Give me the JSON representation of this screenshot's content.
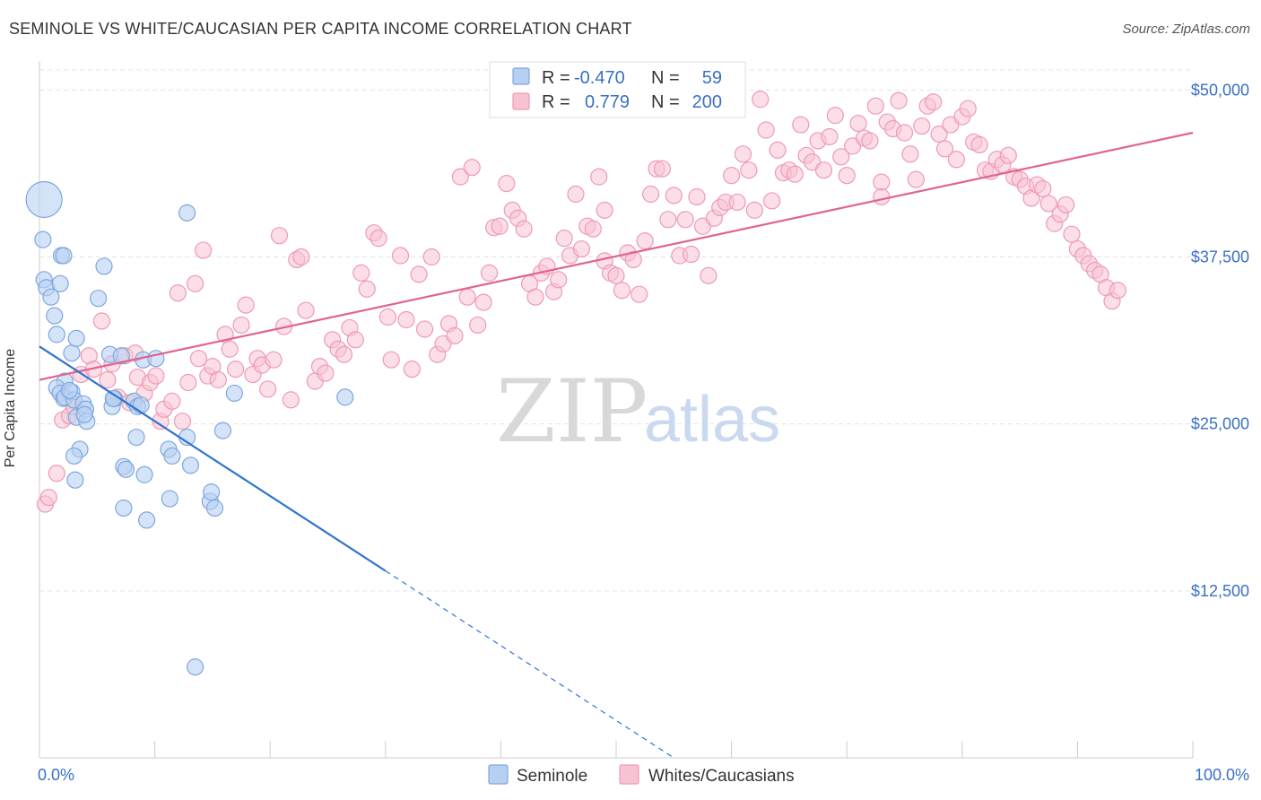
{
  "header": {
    "title": "SEMINOLE VS WHITE/CAUCASIAN PER CAPITA INCOME CORRELATION CHART",
    "source": "Source: ZipAtlas.com"
  },
  "watermark": {
    "zip": "ZIP",
    "atlas": "atlas"
  },
  "colors": {
    "seminole_fill": "#b7d0f2",
    "seminole_stroke": "#7ea7df",
    "seminole_line": "#2f74cf",
    "white_fill": "#f7c3d3",
    "white_stroke": "#ee9ab4",
    "white_line": "#e0648f",
    "tick_text": "#3a6fc4",
    "grid": "#e3e3e3"
  },
  "legend": {
    "rows": [
      {
        "r_label": "R =",
        "r_value": "-0.470",
        "n_label": "N =",
        "n_value": "59"
      },
      {
        "r_label": "R =",
        "r_value": "0.779",
        "n_label": "N =",
        "n_value": "200"
      }
    ]
  },
  "chart_data": {
    "type": "scatter",
    "title": "SEMINOLE VS WHITE/CAUCASIAN PER CAPITA INCOME CORRELATION CHART",
    "xlabel": "",
    "ylabel": "Per Capita Income",
    "x_tick_labels": [
      "0.0%",
      "100.0%"
    ],
    "y_tick_labels": [
      "$12,500",
      "$25,000",
      "$37,500",
      "$50,000"
    ],
    "y_ticks": [
      12500,
      25000,
      37500,
      50000
    ],
    "xlim": [
      0,
      100
    ],
    "ylim": [
      0,
      51500
    ],
    "grid": true,
    "legend_position": "top-center",
    "series": [
      {
        "name": "Seminole",
        "r": -0.47,
        "n": 59,
        "trend": {
          "x0": 0,
          "y0": 30800,
          "x1": 30,
          "y1": 14000,
          "dash_to_x": 55
        },
        "points": [
          [
            0.4,
            41800
          ],
          [
            0.3,
            38800
          ],
          [
            0.4,
            35800
          ],
          [
            0.6,
            35200
          ],
          [
            1.0,
            34500
          ],
          [
            1.3,
            33100
          ],
          [
            1.5,
            31700
          ],
          [
            1.9,
            37600
          ],
          [
            1.8,
            35500
          ],
          [
            2.1,
            37600
          ],
          [
            2.8,
            30300
          ],
          [
            2.2,
            28200
          ],
          [
            1.5,
            27700
          ],
          [
            1.8,
            27300
          ],
          [
            2.1,
            26900
          ],
          [
            2.2,
            27000
          ],
          [
            2.8,
            27400
          ],
          [
            3.0,
            26800
          ],
          [
            3.2,
            25500
          ],
          [
            3.8,
            26500
          ],
          [
            4.0,
            26100
          ],
          [
            4.1,
            25200
          ],
          [
            3.9,
            25700
          ],
          [
            3.2,
            31400
          ],
          [
            3.5,
            23100
          ],
          [
            3.0,
            22600
          ],
          [
            3.1,
            20800
          ],
          [
            5.1,
            34400
          ],
          [
            5.6,
            36800
          ],
          [
            6.1,
            30200
          ],
          [
            6.3,
            26300
          ],
          [
            6.5,
            26900
          ],
          [
            7.1,
            30100
          ],
          [
            7.3,
            21800
          ],
          [
            7.5,
            21600
          ],
          [
            7.3,
            18700
          ],
          [
            8.2,
            26700
          ],
          [
            8.5,
            26300
          ],
          [
            8.4,
            24000
          ],
          [
            9.0,
            29800
          ],
          [
            9.1,
            21200
          ],
          [
            9.3,
            17800
          ],
          [
            11.2,
            23100
          ],
          [
            11.3,
            19400
          ],
          [
            11.5,
            22600
          ],
          [
            12.8,
            24000
          ],
          [
            13.1,
            21900
          ],
          [
            14.8,
            19200
          ],
          [
            14.9,
            19900
          ],
          [
            15.2,
            18700
          ],
          [
            15.9,
            24500
          ],
          [
            16.9,
            27300
          ],
          [
            13.5,
            6800
          ],
          [
            12.8,
            40800
          ],
          [
            26.5,
            27000
          ],
          [
            2.6,
            27500
          ],
          [
            6.4,
            26900
          ],
          [
            8.8,
            26400
          ],
          [
            10.1,
            29900
          ]
        ]
      },
      {
        "name": "Whites/Caucasians",
        "r": 0.779,
        "n": 200,
        "trend": {
          "x0": 0,
          "y0": 28300,
          "x1": 100,
          "y1": 46800
        },
        "points": [
          [
            0.5,
            19000
          ],
          [
            0.8,
            19500
          ],
          [
            1.5,
            21300
          ],
          [
            2.0,
            25300
          ],
          [
            2.6,
            25600
          ],
          [
            3.0,
            26300
          ],
          [
            3.6,
            28700
          ],
          [
            4.3,
            30100
          ],
          [
            4.7,
            29100
          ],
          [
            5.4,
            32700
          ],
          [
            5.9,
            28300
          ],
          [
            6.3,
            29500
          ],
          [
            6.8,
            27000
          ],
          [
            7.4,
            30100
          ],
          [
            7.8,
            26600
          ],
          [
            8.3,
            30300
          ],
          [
            8.5,
            28500
          ],
          [
            9.1,
            27300
          ],
          [
            9.6,
            28100
          ],
          [
            10.1,
            28600
          ],
          [
            10.5,
            25200
          ],
          [
            10.8,
            26100
          ],
          [
            11.5,
            26700
          ],
          [
            12.0,
            34800
          ],
          [
            12.4,
            25200
          ],
          [
            12.9,
            28100
          ],
          [
            13.5,
            35500
          ],
          [
            13.8,
            29900
          ],
          [
            14.2,
            38000
          ],
          [
            14.6,
            28600
          ],
          [
            15.0,
            29300
          ],
          [
            15.5,
            28300
          ],
          [
            16.1,
            31700
          ],
          [
            16.5,
            30600
          ],
          [
            17.0,
            29100
          ],
          [
            17.5,
            32400
          ],
          [
            17.9,
            33900
          ],
          [
            18.5,
            28700
          ],
          [
            18.9,
            29900
          ],
          [
            19.3,
            29400
          ],
          [
            19.8,
            27600
          ],
          [
            20.3,
            29800
          ],
          [
            20.8,
            39100
          ],
          [
            21.2,
            32300
          ],
          [
            21.8,
            26800
          ],
          [
            22.3,
            37300
          ],
          [
            22.7,
            37500
          ],
          [
            23.1,
            33500
          ],
          [
            23.9,
            28200
          ],
          [
            24.3,
            29300
          ],
          [
            24.8,
            28800
          ],
          [
            25.4,
            31300
          ],
          [
            25.9,
            30600
          ],
          [
            26.4,
            30200
          ],
          [
            26.9,
            32200
          ],
          [
            27.4,
            31300
          ],
          [
            27.9,
            36300
          ],
          [
            28.4,
            35100
          ],
          [
            29.0,
            39300
          ],
          [
            29.4,
            38900
          ],
          [
            30.2,
            33000
          ],
          [
            30.5,
            29800
          ],
          [
            31.3,
            37600
          ],
          [
            31.8,
            32800
          ],
          [
            32.3,
            29100
          ],
          [
            32.9,
            36200
          ],
          [
            33.4,
            32100
          ],
          [
            34.0,
            37500
          ],
          [
            34.5,
            30200
          ],
          [
            35.0,
            31000
          ],
          [
            35.5,
            32500
          ],
          [
            36.0,
            31600
          ],
          [
            36.5,
            43500
          ],
          [
            37.1,
            34500
          ],
          [
            37.5,
            44200
          ],
          [
            38.0,
            32400
          ],
          [
            38.5,
            34100
          ],
          [
            39.0,
            36300
          ],
          [
            39.4,
            39700
          ],
          [
            39.9,
            39800
          ],
          [
            40.5,
            43000
          ],
          [
            41.0,
            41000
          ],
          [
            41.5,
            40400
          ],
          [
            42.0,
            39600
          ],
          [
            42.5,
            35500
          ],
          [
            43.0,
            34500
          ],
          [
            43.5,
            36300
          ],
          [
            44.0,
            36800
          ],
          [
            44.6,
            34900
          ],
          [
            45.0,
            35800
          ],
          [
            45.5,
            38900
          ],
          [
            46.0,
            37600
          ],
          [
            46.5,
            42200
          ],
          [
            47.0,
            38100
          ],
          [
            47.5,
            39800
          ],
          [
            48.0,
            39600
          ],
          [
            48.5,
            43500
          ],
          [
            49.0,
            37200
          ],
          [
            49.5,
            36300
          ],
          [
            50.0,
            36100
          ],
          [
            50.5,
            35000
          ],
          [
            51.0,
            37800
          ],
          [
            51.5,
            37300
          ],
          [
            52.0,
            34700
          ],
          [
            52.5,
            38700
          ],
          [
            53.0,
            42200
          ],
          [
            53.5,
            44100
          ],
          [
            54.0,
            44100
          ],
          [
            54.5,
            40300
          ],
          [
            55.0,
            42100
          ],
          [
            55.5,
            37600
          ],
          [
            56.0,
            40300
          ],
          [
            56.5,
            37700
          ],
          [
            57.0,
            42000
          ],
          [
            57.5,
            39800
          ],
          [
            58.0,
            36100
          ],
          [
            58.5,
            40400
          ],
          [
            59.0,
            41200
          ],
          [
            59.5,
            41600
          ],
          [
            60.0,
            43600
          ],
          [
            60.5,
            41600
          ],
          [
            61.0,
            45200
          ],
          [
            61.5,
            44000
          ],
          [
            62.0,
            41000
          ],
          [
            62.5,
            49300
          ],
          [
            63.0,
            47000
          ],
          [
            63.5,
            41700
          ],
          [
            64.0,
            45500
          ],
          [
            64.5,
            43800
          ],
          [
            65.0,
            44000
          ],
          [
            65.5,
            43700
          ],
          [
            66.0,
            47400
          ],
          [
            66.5,
            45100
          ],
          [
            67.0,
            44600
          ],
          [
            67.5,
            46200
          ],
          [
            68.0,
            44000
          ],
          [
            68.5,
            46500
          ],
          [
            69.0,
            48100
          ],
          [
            69.5,
            45000
          ],
          [
            70.0,
            43600
          ],
          [
            70.5,
            45800
          ],
          [
            71.0,
            47500
          ],
          [
            71.5,
            46400
          ],
          [
            72.0,
            46200
          ],
          [
            72.5,
            48800
          ],
          [
            73.0,
            43100
          ],
          [
            73.5,
            47600
          ],
          [
            74.0,
            47100
          ],
          [
            74.5,
            49200
          ],
          [
            75.0,
            46800
          ],
          [
            75.5,
            45200
          ],
          [
            76.0,
            43300
          ],
          [
            76.5,
            47300
          ],
          [
            77.0,
            48800
          ],
          [
            77.5,
            49100
          ],
          [
            78.0,
            46700
          ],
          [
            78.5,
            45600
          ],
          [
            79.0,
            47400
          ],
          [
            79.5,
            44800
          ],
          [
            80.0,
            48000
          ],
          [
            80.5,
            48600
          ],
          [
            81.0,
            46100
          ],
          [
            81.5,
            45900
          ],
          [
            82.0,
            44000
          ],
          [
            82.5,
            43900
          ],
          [
            83.0,
            44800
          ],
          [
            83.5,
            44400
          ],
          [
            84.0,
            45100
          ],
          [
            84.5,
            43500
          ],
          [
            85.0,
            43300
          ],
          [
            85.5,
            42800
          ],
          [
            86.0,
            41900
          ],
          [
            86.5,
            42900
          ],
          [
            87.0,
            42600
          ],
          [
            87.5,
            41500
          ],
          [
            88.0,
            40000
          ],
          [
            88.5,
            40700
          ],
          [
            89.0,
            41400
          ],
          [
            89.5,
            39200
          ],
          [
            90.0,
            38100
          ],
          [
            90.5,
            37600
          ],
          [
            91.0,
            37000
          ],
          [
            91.5,
            36500
          ],
          [
            92.0,
            36200
          ],
          [
            92.5,
            35200
          ],
          [
            93.0,
            34200
          ],
          [
            93.5,
            35000
          ],
          [
            49.0,
            41000
          ],
          [
            73.0,
            42000
          ]
        ]
      }
    ]
  },
  "bottom_legend": {
    "items": [
      {
        "label": "Seminole"
      },
      {
        "label": "Whites/Caucasians"
      }
    ]
  }
}
